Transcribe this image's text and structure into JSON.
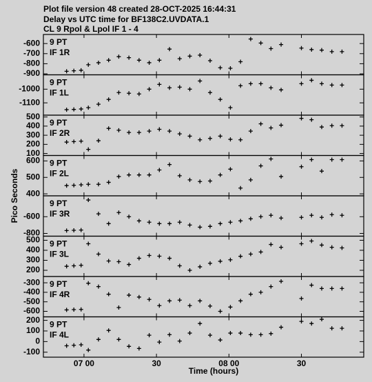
{
  "header": {
    "lines": [
      "Plot file version 48  created 28-OCT-2025 16:44:31",
      "Delay vs UTC time for BF138C2.UVDATA.1",
      "CL 9   Rpol & Lpol  IF 1 - 4"
    ]
  },
  "ylabel": "Pico Seconds",
  "xlabel": "Time (hours)",
  "chart_data": [
    {
      "type": "scatter",
      "title": "9 PT",
      "subtitle": "IF 1R",
      "color": "#000000",
      "x": [
        6.88,
        6.93,
        6.98,
        7.03,
        7.1,
        7.17,
        7.24,
        7.31,
        7.38,
        7.45,
        7.52,
        7.59,
        7.66,
        7.73,
        7.8,
        7.87,
        7.94,
        8.01,
        8.08,
        8.15,
        8.22,
        8.29,
        8.36,
        8.5,
        8.57,
        8.64,
        8.71,
        8.78
      ],
      "values": [
        -875,
        -870,
        -865,
        -810,
        -790,
        -765,
        -730,
        -740,
        -765,
        -790,
        -765,
        -655,
        -750,
        -725,
        -715,
        -770,
        -840,
        -845,
        -780,
        -555,
        -595,
        -650,
        -610,
        -645,
        -660,
        -665,
        -680,
        -680
      ],
      "ylim": [
        -910,
        -510
      ],
      "yticks": [
        -600,
        -700,
        -800,
        -900
      ]
    },
    {
      "type": "scatter",
      "title": "9 PT",
      "subtitle": "IF 1L",
      "color": "#000000",
      "x": [
        6.88,
        6.93,
        6.98,
        7.03,
        7.1,
        7.17,
        7.24,
        7.31,
        7.38,
        7.45,
        7.52,
        7.59,
        7.66,
        7.73,
        7.8,
        7.87,
        7.94,
        8.01,
        8.08,
        8.15,
        8.22,
        8.29,
        8.36,
        8.5,
        8.57,
        8.64,
        8.71,
        8.78
      ],
      "values": [
        -1150,
        -1148,
        -1145,
        -1135,
        -1110,
        -1075,
        -1025,
        -1030,
        -1035,
        -1000,
        -965,
        -990,
        -985,
        -1000,
        -940,
        -1025,
        -1075,
        -1135,
        -975,
        -960,
        -960,
        -990,
        -1005,
        -960,
        -935,
        -960,
        -970,
        -970
      ],
      "ylim": [
        -1190,
        -895
      ],
      "yticks": [
        -1000,
        -1100
      ]
    },
    {
      "type": "scatter",
      "title": "9 PT",
      "subtitle": "IF 2R",
      "color": "#000000",
      "x": [
        6.88,
        6.93,
        6.98,
        7.03,
        7.1,
        7.17,
        7.24,
        7.31,
        7.38,
        7.45,
        7.52,
        7.59,
        7.66,
        7.73,
        7.8,
        7.87,
        7.94,
        8.01,
        8.08,
        8.15,
        8.22,
        8.29,
        8.36,
        8.5,
        8.57,
        8.64,
        8.71,
        8.78
      ],
      "values": [
        225,
        230,
        235,
        145,
        240,
        375,
        355,
        330,
        330,
        345,
        365,
        345,
        315,
        290,
        250,
        265,
        290,
        255,
        250,
        345,
        425,
        380,
        410,
        485,
        470,
        390,
        405,
        405
      ],
      "ylim": [
        78,
        520
      ],
      "yticks": [
        500,
        400,
        300,
        200,
        100
      ]
    },
    {
      "type": "scatter",
      "title": "9 PT",
      "subtitle": "IF 2L",
      "color": "#000000",
      "x": [
        6.88,
        6.93,
        6.98,
        7.03,
        7.1,
        7.17,
        7.24,
        7.31,
        7.38,
        7.45,
        7.52,
        7.59,
        7.66,
        7.73,
        7.8,
        7.87,
        7.94,
        8.01,
        8.08,
        8.15,
        8.22,
        8.29,
        8.36,
        8.5,
        8.57,
        8.64,
        8.71,
        8.78
      ],
      "values": [
        450,
        452,
        455,
        458,
        458,
        470,
        505,
        515,
        515,
        515,
        545,
        578,
        510,
        485,
        475,
        478,
        515,
        550,
        435,
        485,
        570,
        612,
        505,
        565,
        608,
        538,
        608,
        608
      ],
      "ylim": [
        388,
        633
      ],
      "yticks": [
        600,
        500,
        400
      ]
    },
    {
      "type": "scatter",
      "title": "9 PT",
      "subtitle": "IF 3R",
      "color": "#000000",
      "x": [
        6.88,
        6.93,
        6.98,
        7.03,
        7.1,
        7.17,
        7.24,
        7.31,
        7.38,
        7.45,
        7.52,
        7.59,
        7.66,
        7.73,
        7.8,
        7.87,
        7.94,
        8.01,
        8.08,
        8.15,
        8.22,
        8.29,
        8.36,
        8.5,
        8.57,
        8.64,
        8.71,
        8.78
      ],
      "values": [
        -766,
        -763,
        -760,
        -400,
        -566,
        -683,
        -550,
        -600,
        -650,
        -666,
        -683,
        -683,
        -666,
        -700,
        -725,
        -716,
        -683,
        -666,
        -650,
        -625,
        -600,
        -583,
        -616,
        -608,
        -583,
        -608,
        -575,
        -583
      ],
      "ylim": [
        -833,
        -350
      ],
      "yticks": [
        -600,
        -800
      ]
    },
    {
      "type": "scatter",
      "title": "9 PT",
      "subtitle": "IF 3L",
      "color": "#000000",
      "x": [
        6.88,
        6.93,
        6.98,
        7.03,
        7.1,
        7.17,
        7.24,
        7.31,
        7.38,
        7.45,
        7.52,
        7.59,
        7.66,
        7.73,
        7.8,
        7.87,
        7.94,
        8.01,
        8.08,
        8.15,
        8.22,
        8.29,
        8.36,
        8.5,
        8.57,
        8.64,
        8.71,
        8.78
      ],
      "values": [
        240,
        245,
        250,
        465,
        362,
        293,
        286,
        258,
        320,
        348,
        341,
        320,
        245,
        200,
        235,
        270,
        290,
        305,
        340,
        362,
        383,
        458,
        430,
        465,
        493,
        452,
        430,
        424
      ],
      "ylim": [
        138,
        541
      ],
      "yticks": [
        500,
        400,
        300,
        200
      ]
    },
    {
      "type": "scatter",
      "title": "9 PT",
      "subtitle": "IF 4R",
      "color": "#000000",
      "x": [
        6.88,
        6.93,
        6.98,
        7.03,
        7.1,
        7.17,
        7.24,
        7.31,
        7.38,
        7.45,
        7.52,
        7.59,
        7.66,
        7.73,
        7.8,
        7.87,
        7.94,
        8.01,
        8.08,
        8.15,
        8.22,
        8.29,
        8.36,
        8.5,
        8.57,
        8.64,
        8.71,
        8.78
      ],
      "values": [
        -585,
        -582,
        -580,
        -305,
        -340,
        -420,
        -560,
        -430,
        -450,
        -475,
        -540,
        -490,
        -482,
        -540,
        -490,
        -545,
        -600,
        -555,
        -490,
        -420,
        -400,
        -340,
        -285,
        -465,
        -325,
        -360,
        -360,
        -360
      ],
      "ylim": [
        -658,
        -234
      ],
      "yticks": [
        -300,
        -400,
        -500,
        -600
      ]
    },
    {
      "type": "scatter",
      "title": "9 PT",
      "subtitle": "IF 4L",
      "color": "#000000",
      "x": [
        6.88,
        6.93,
        6.98,
        7.03,
        7.1,
        7.17,
        7.24,
        7.31,
        7.38,
        7.45,
        7.52,
        7.59,
        7.66,
        7.73,
        7.8,
        7.87,
        7.94,
        8.01,
        8.08,
        8.15,
        8.22,
        8.29,
        8.36,
        8.5,
        8.57,
        8.64,
        8.71,
        8.78
      ],
      "values": [
        -40,
        -35,
        -30,
        -80,
        20,
        105,
        20,
        -45,
        -65,
        60,
        -5,
        65,
        5,
        80,
        170,
        60,
        15,
        80,
        80,
        65,
        65,
        75,
        135,
        190,
        170,
        210,
        125,
        125
      ],
      "ylim": [
        -147,
        233
      ],
      "yticks": [
        200,
        100,
        0,
        -100
      ],
      "xlim": [
        6.72,
        8.93
      ],
      "xticks": [
        {
          "value": 7,
          "label": "07 00"
        },
        {
          "value": 7.5,
          "label": "30"
        },
        {
          "value": 8,
          "label": "08 00"
        },
        {
          "value": 8.5,
          "label": "30"
        }
      ]
    }
  ]
}
